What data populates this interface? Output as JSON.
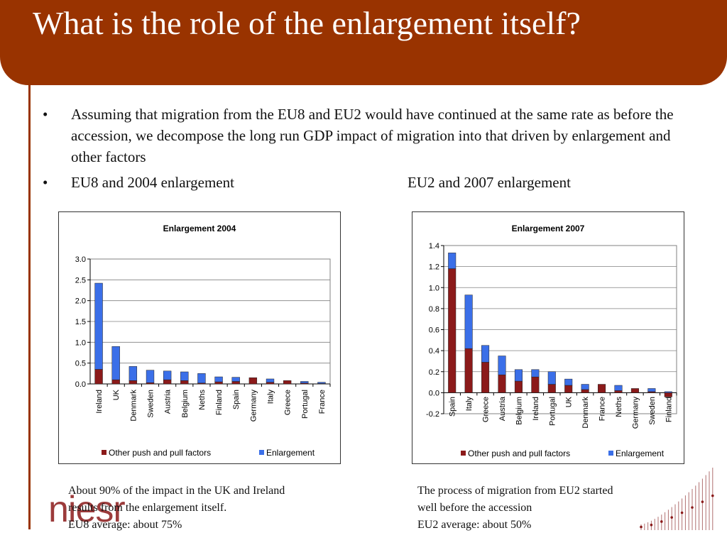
{
  "slide": {
    "title": "What is the role of the enlargement itself?",
    "bullets": [
      "Assuming that migration from the EU8 and EU2 would have continued at the same rate as before the accession, we decompose the long run GDP impact of migration into that driven by enlargement and other factors"
    ],
    "bullet_marker": "•",
    "section_left": "EU8 and 2004 enlargement",
    "section_right": "EU2 and 2007 enlargement",
    "caption_left": [
      "About 90% of the impact in the UK and Ireland",
      "results from the enlargement itself.",
      "EU8 average: about 75%"
    ],
    "caption_right": [
      "The process of migration from EU2 started",
      "well before the accession",
      "EU2 average: about 50%"
    ],
    "logo_text": "niesr"
  },
  "colors": {
    "band": "#993300",
    "other": "#8B1A1A",
    "enlargement": "#3B6FE8"
  },
  "chart_data": [
    {
      "type": "bar",
      "stacked": true,
      "title": "Enlargement 2004",
      "categories": [
        "Ireland",
        "UK",
        "Denmark",
        "Sweden",
        "Austria",
        "Belgium",
        "Neths",
        "Finland",
        "Spain",
        "Germany",
        "Italy",
        "Greece",
        "Portugal",
        "France"
      ],
      "series": [
        {
          "name": "Other push and pull factors",
          "values": [
            0.35,
            0.1,
            0.08,
            0.03,
            0.1,
            0.08,
            0.02,
            0.05,
            0.06,
            0.15,
            0.04,
            0.08,
            0.02,
            0.01
          ]
        },
        {
          "name": "Enlargement",
          "values": [
            2.07,
            0.8,
            0.34,
            0.3,
            0.21,
            0.21,
            0.23,
            0.12,
            0.1,
            0.0,
            0.08,
            0.0,
            0.04,
            0.03
          ]
        }
      ],
      "ylim": [
        0,
        3.0
      ],
      "yticks": [
        "0.0",
        "0.5",
        "1.0",
        "1.5",
        "2.0",
        "2.5",
        "3.0"
      ],
      "legend": "bottom",
      "grid": true
    },
    {
      "type": "bar",
      "stacked": true,
      "title": "Enlargement 2007",
      "categories": [
        "Spain",
        "Italy",
        "Greece",
        "Austria",
        "Belgium",
        "Ireland",
        "Portugal",
        "UK",
        "Denmark",
        "France",
        "Neths",
        "Germany",
        "Sweden",
        "Finland"
      ],
      "series": [
        {
          "name": "Other push and pull factors",
          "values": [
            1.18,
            0.42,
            0.29,
            0.17,
            0.11,
            0.15,
            0.08,
            0.07,
            0.03,
            0.08,
            0.02,
            0.04,
            0.01,
            -0.04
          ]
        },
        {
          "name": "Enlargement",
          "values": [
            0.15,
            0.51,
            0.16,
            0.18,
            0.11,
            0.07,
            0.12,
            0.06,
            0.05,
            0.0,
            0.05,
            0.0,
            0.03,
            0.01
          ]
        }
      ],
      "ylim": [
        -0.2,
        1.4
      ],
      "yticks": [
        "-0.2",
        "0.0",
        "0.2",
        "0.4",
        "0.6",
        "0.8",
        "1.0",
        "1.2",
        "1.4"
      ],
      "legend": "bottom",
      "grid": true
    }
  ]
}
